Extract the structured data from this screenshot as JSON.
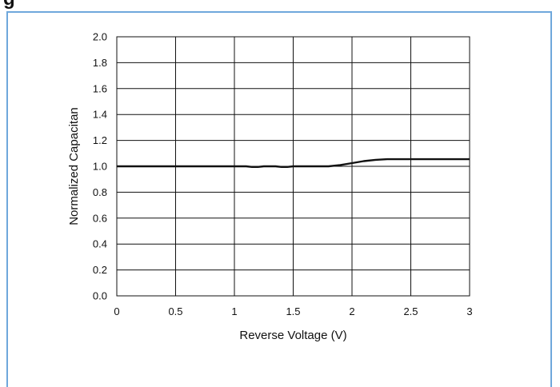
{
  "header": {
    "title": "g"
  },
  "chart_data": {
    "type": "line",
    "title": "",
    "xlabel": "Reverse Voltage (V)",
    "ylabel": "Normalized Capacitan",
    "xlim": [
      0,
      3
    ],
    "ylim": [
      0,
      2.0
    ],
    "x_ticks": [
      "0",
      "0.5",
      "1",
      "1.5",
      "2",
      "2.5",
      "3"
    ],
    "y_ticks": [
      "0.0",
      "0.2",
      "0.4",
      "0.6",
      "0.8",
      "1.0",
      "1.2",
      "1.4",
      "1.6",
      "1.8",
      "2.0"
    ],
    "grid": true,
    "series": [
      {
        "x": [
          0,
          0.5,
          1.0,
          1.1,
          1.15,
          1.2,
          1.25,
          1.3,
          1.35,
          1.4,
          1.45,
          1.5,
          1.6,
          1.8,
          1.9,
          2.0,
          2.1,
          2.2,
          2.3,
          2.5,
          2.75,
          3.0
        ],
        "y": [
          1.0,
          1.0,
          1.0,
          1.0,
          0.995,
          0.995,
          1.0,
          1.0,
          1.0,
          0.995,
          0.995,
          1.0,
          1.0,
          1.0,
          1.01,
          1.025,
          1.04,
          1.05,
          1.055,
          1.055,
          1.055,
          1.055
        ]
      }
    ]
  }
}
